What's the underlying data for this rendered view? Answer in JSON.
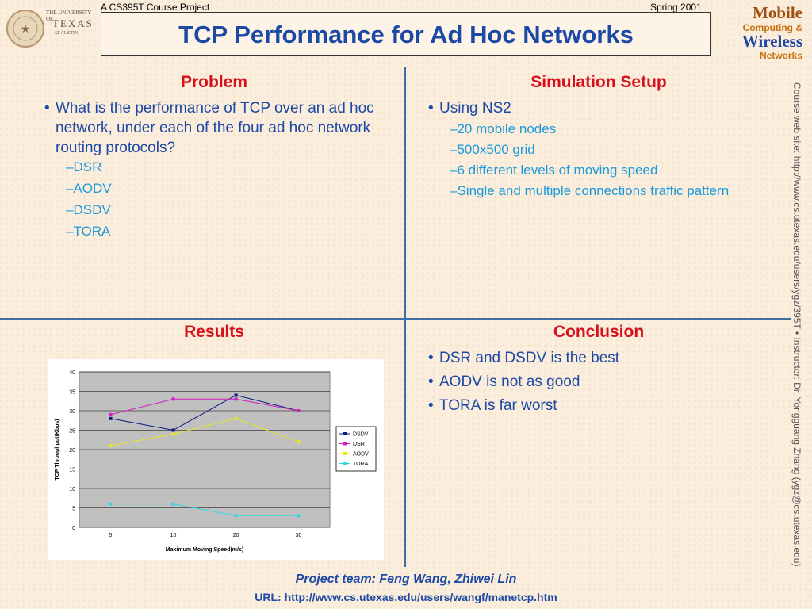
{
  "header": {
    "course_label": "A CS395T Course Project",
    "term_label": "Spring 2001",
    "title": "TCP Performance for Ad Hoc Networks"
  },
  "logo_ut": {
    "line1": "THE UNIVERSITY OF",
    "line2": "TEXAS",
    "line3": "AT AUSTIN"
  },
  "logo_mcw": {
    "mobile": "Mobile",
    "computing": "Computing &",
    "wireless": "Wireless",
    "networks": "Networks"
  },
  "side_text": "Course web site: http://www.cs.utexas.edu/users/ygz/395T • Instructor: Dr. Yongguang Zhang (ygz@cs.utexas.edu)",
  "problem": {
    "heading": "Problem",
    "bullet": "What is the performance of TCP over an ad hoc network, under each of the four ad hoc network routing protocols?",
    "subs": [
      "–DSR",
      "–AODV",
      "–DSDV",
      "–TORA"
    ]
  },
  "simulation": {
    "heading": "Simulation Setup",
    "bullet": "Using NS2",
    "subs": [
      "–20 mobile nodes",
      "–500x500 grid",
      "–6 different levels of moving speed",
      "–Single and multiple connections traffic pattern"
    ]
  },
  "results": {
    "heading": "Results"
  },
  "conclusion": {
    "heading": "Conclusion",
    "bullets": [
      "DSR and DSDV is the best",
      "AODV is not as good",
      "TORA is far worst"
    ]
  },
  "footer": {
    "team": "Project team: Feng Wang, Zhiwei Lin",
    "url": "URL: http://www.cs.utexas.edu/users/wangf/manetcp.htm"
  },
  "chart_data": {
    "type": "line",
    "categories": [
      "5",
      "10",
      "20",
      "30"
    ],
    "xlabel": "Maximum Moving Speed(m/s)",
    "ylabel": "TCP Throughput(Kbps)",
    "ylim": [
      0,
      40
    ],
    "yticks": [
      "0",
      "5",
      "10",
      "15",
      "20",
      "25",
      "30",
      "35",
      "40"
    ],
    "grid": true,
    "legend_position": "right",
    "plot_background": "#c0c0c0",
    "series": [
      {
        "name": "DSDV",
        "values": [
          28,
          25,
          34,
          30
        ],
        "color": "#0a1a80"
      },
      {
        "name": "DSR",
        "values": [
          29,
          33,
          33,
          30
        ],
        "color": "#d020c0"
      },
      {
        "name": "AODV",
        "values": [
          21,
          24,
          28,
          22
        ],
        "color": "#e8e820"
      },
      {
        "name": "TORA",
        "values": [
          6,
          6,
          3,
          3
        ],
        "color": "#30d8e0"
      }
    ]
  }
}
